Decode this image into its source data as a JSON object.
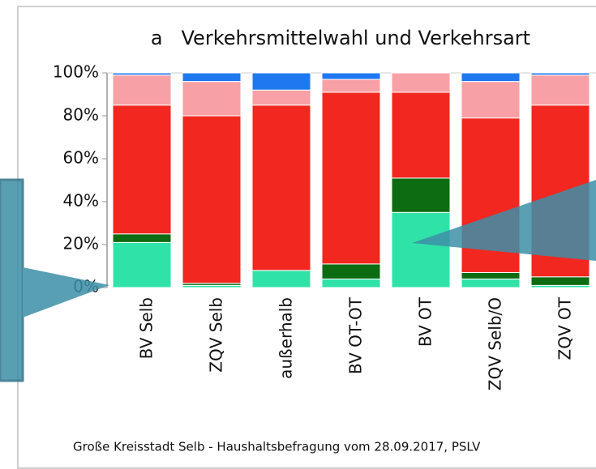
{
  "chart_data": {
    "type": "stacked_bar",
    "title": "a   Verkehrsmittelwahl und Verkehrsart",
    "footer": "Große Kreisstadt Selb - Haushaltsbefragung vom 28.09.2017, PSLV",
    "categories": [
      "BV Selb",
      "ZQV Selb",
      "außerhalb",
      "BV OT-OT",
      "BV OT",
      "ZQV Selb/O",
      "ZQV OT"
    ],
    "series": [
      {
        "color": "#2fe3a8",
        "values": [
          21,
          1,
          8,
          4,
          35,
          4,
          1
        ]
      },
      {
        "color": "#0d6b12",
        "values": [
          4,
          1,
          0,
          7,
          16,
          3,
          4
        ]
      },
      {
        "color": "#f2271f",
        "values": [
          60,
          78,
          77,
          80,
          40,
          72,
          80
        ]
      },
      {
        "color": "#f7a0a6",
        "values": [
          14,
          16,
          7,
          6,
          9,
          17,
          14
        ]
      },
      {
        "color": "#1f78f0",
        "values": [
          1,
          4,
          8,
          3,
          0,
          4,
          1
        ]
      }
    ],
    "ylim": [
      0,
      100
    ],
    "yticks": [
      {
        "value": 0,
        "label": "0%"
      },
      {
        "value": 20,
        "label": "20%"
      },
      {
        "value": 40,
        "label": "40%"
      },
      {
        "value": 60,
        "label": "60%"
      },
      {
        "value": 80,
        "label": "80%"
      },
      {
        "value": 100,
        "label": "100%"
      }
    ]
  }
}
